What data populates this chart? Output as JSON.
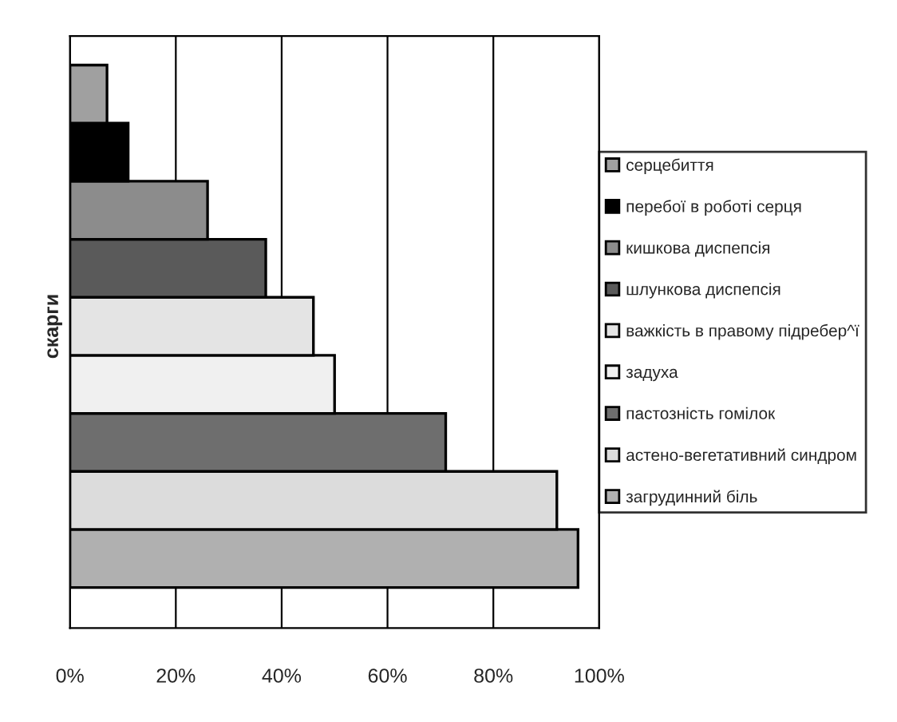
{
  "chart_data": {
    "type": "bar",
    "orientation": "horizontal",
    "categories": [
      "скарги"
    ],
    "series": [
      {
        "name": "загрудинний біль",
        "color": "#b0b0b0",
        "values": [
          96
        ]
      },
      {
        "name": "астено-вегетативний синдром",
        "color": "#dcdcdc",
        "values": [
          92
        ]
      },
      {
        "name": "пастозність гомілок",
        "color": "#6e6e6e",
        "values": [
          71
        ]
      },
      {
        "name": "задуха",
        "color": "#f0f0f0",
        "values": [
          50
        ]
      },
      {
        "name": "важкість в правому підребер^ї",
        "color": "#e4e4e4",
        "values": [
          46
        ]
      },
      {
        "name": "шлункова диспепсія",
        "color": "#5a5a5a",
        "values": [
          37
        ]
      },
      {
        "name": "кишкова диспепсія",
        "color": "#8c8c8c",
        "values": [
          26
        ]
      },
      {
        "name": "перебої в роботі серця",
        "color": "#000000",
        "values": [
          11
        ]
      },
      {
        "name": "серцебиття",
        "color": "#a0a0a0",
        "values": [
          7
        ]
      }
    ],
    "xlim": [
      0,
      100
    ],
    "xticks": [
      {
        "value": 0,
        "label": "0%"
      },
      {
        "value": 20,
        "label": "20%"
      },
      {
        "value": 40,
        "label": "40%"
      },
      {
        "value": 60,
        "label": "60%"
      },
      {
        "value": 80,
        "label": "80%"
      },
      {
        "value": 100,
        "label": "100%"
      }
    ],
    "grid": "x",
    "legend": "right"
  }
}
